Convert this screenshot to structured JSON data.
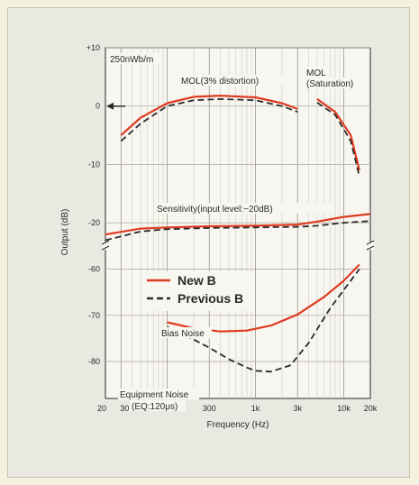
{
  "chart_data": {
    "type": "line",
    "xlabel": "Frequency (Hz)",
    "ylabel": "Output (dB)",
    "x_scale": "log",
    "xlim": [
      20,
      20000
    ],
    "grid": true,
    "x_ticks": [
      {
        "value": 20,
        "label": "20"
      },
      {
        "value": 30,
        "label": "30"
      },
      {
        "value": 100,
        "label": "100"
      },
      {
        "value": 300,
        "label": "300"
      },
      {
        "value": 1000,
        "label": "1k"
      },
      {
        "value": 3000,
        "label": "3k"
      },
      {
        "value": 10000,
        "label": "10k"
      },
      {
        "value": 20000,
        "label": "20k"
      }
    ],
    "y_axis_break": true,
    "y_upper_ticks": [
      {
        "value": 10,
        "label": "+10"
      },
      {
        "value": 0,
        "label": "0"
      },
      {
        "value": -10,
        "label": "-10"
      },
      {
        "value": -20,
        "label": "-20"
      }
    ],
    "y_lower_ticks": [
      {
        "value": -60,
        "label": "-60"
      },
      {
        "value": -70,
        "label": "-70"
      },
      {
        "value": -80,
        "label": "-80"
      }
    ],
    "series": [
      {
        "name": "New B",
        "color": "#e03a22",
        "dash": false,
        "segments": [
          {
            "x": [
              30,
              50,
              100,
              200,
              400,
              1000,
              2000,
              3000
            ],
            "y": [
              -5,
              -2,
              0.5,
              1.6,
              1.8,
              1.5,
              0.5,
              -0.5
            ]
          },
          {
            "x": [
              5000,
              8000,
              12000,
              15000
            ],
            "y": [
              1.2,
              -1,
              -5,
              -11
            ]
          },
          {
            "x": [
              20,
              50,
              100,
              300,
              1000,
              3000,
              5000,
              10000,
              20000
            ],
            "y": [
              -22,
              -21,
              -20.8,
              -20.6,
              -20.5,
              -20.3,
              -19.8,
              -19,
              -18.5
            ]
          },
          {
            "x": [
              100,
              200,
              400,
              800,
              1500,
              3000,
              6000,
              10000,
              15000
            ],
            "y": [
              -71.5,
              -72.8,
              -73.5,
              -73.3,
              -72.2,
              -69.8,
              -66,
              -62.5,
              -59
            ]
          }
        ]
      },
      {
        "name": "Previous B",
        "color": "#2a2a2a",
        "dash": true,
        "segments": [
          {
            "x": [
              30,
              50,
              100,
              200,
              400,
              1000,
              2000,
              3000
            ],
            "y": [
              -6,
              -3,
              0,
              1,
              1.2,
              1,
              0,
              -1
            ]
          },
          {
            "x": [
              5000,
              8000,
              12000,
              15000
            ],
            "y": [
              0.6,
              -1.5,
              -6,
              -12
            ]
          },
          {
            "x": [
              20,
              50,
              100,
              300,
              1000,
              3000,
              5000,
              10000,
              20000
            ],
            "y": [
              -23,
              -21.5,
              -21.1,
              -20.9,
              -20.8,
              -20.7,
              -20.5,
              -20,
              -19.7
            ]
          },
          {
            "x": [
              100,
              150,
              300,
              500,
              800,
              1000,
              1500,
              2500,
              4000,
              7000,
              10000,
              15000
            ],
            "y": [
              -72.5,
              -74,
              -77,
              -79.5,
              -81.3,
              -82,
              -82.2,
              -80.8,
              -76,
              -68.5,
              -64.5,
              -60
            ]
          }
        ]
      }
    ],
    "legend": {
      "placement": "middle-left",
      "items": [
        {
          "label": "New B",
          "color": "#e03a22",
          "dash": false
        },
        {
          "label": "Previous B",
          "color": "#2a2a2a",
          "dash": true
        }
      ]
    },
    "annotations": [
      {
        "id": "ref",
        "text": "250nWb/m"
      },
      {
        "id": "mol",
        "text": "MOL(3% distortion)"
      },
      {
        "id": "mols1",
        "text": "MOL"
      },
      {
        "id": "mols2",
        "text": "(Saturation)"
      },
      {
        "id": "sens",
        "text": "Sensitivity(input level:−20dB)"
      },
      {
        "id": "bias",
        "text": "Bias Noise"
      },
      {
        "id": "eqn1",
        "text": "Equipment Noise"
      },
      {
        "id": "eqn2",
        "text": "(EQ:120μs)"
      }
    ]
  }
}
